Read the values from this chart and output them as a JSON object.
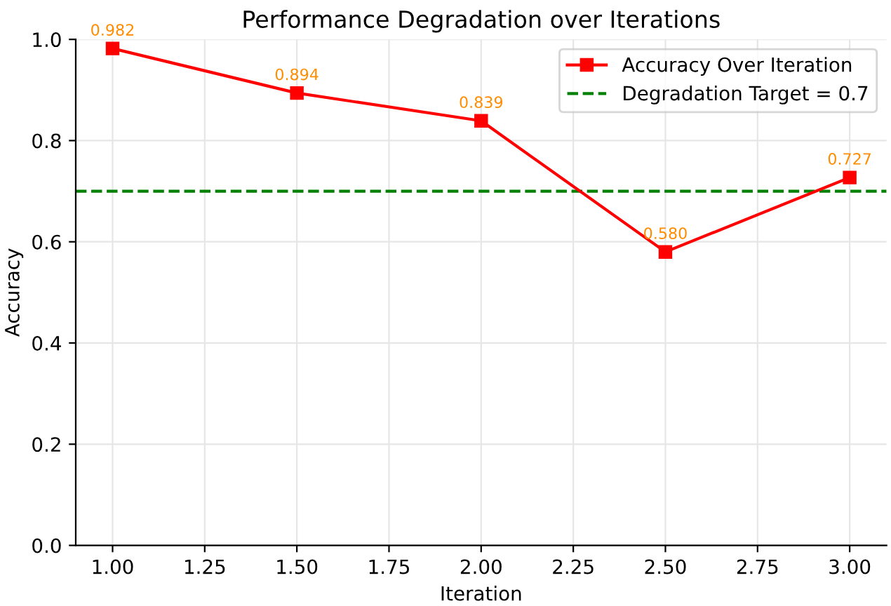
{
  "chart_data": {
    "type": "line",
    "title": "Performance Degradation over Iterations",
    "xlabel": "Iteration",
    "ylabel": "Accuracy",
    "x": [
      1.0,
      1.5,
      2.0,
      2.5,
      3.0
    ],
    "series": [
      {
        "name": "Accuracy Over Iteration",
        "color": "#ff0000",
        "values": [
          0.982,
          0.894,
          0.839,
          0.58,
          0.727
        ],
        "value_labels": [
          "0.982",
          "0.894",
          "0.839",
          "0.580",
          "0.727"
        ]
      }
    ],
    "marker": "square",
    "line_style": "solid",
    "ref_lines": [
      {
        "axis": "y",
        "value": 0.7,
        "label": "Degradation Target = 0.7",
        "color": "#008000",
        "line_style": "dashed"
      }
    ],
    "xlim": [
      0.9,
      3.1
    ],
    "xticks": [
      {
        "value": 1.0,
        "label": "1.00"
      },
      {
        "value": 1.25,
        "label": "1.25"
      },
      {
        "value": 1.5,
        "label": "1.50"
      },
      {
        "value": 1.75,
        "label": "1.75"
      },
      {
        "value": 2.0,
        "label": "2.00"
      },
      {
        "value": 2.25,
        "label": "2.25"
      },
      {
        "value": 2.5,
        "label": "2.50"
      },
      {
        "value": 2.75,
        "label": "2.75"
      },
      {
        "value": 3.0,
        "label": "3.00"
      }
    ],
    "ylim": [
      0,
      1
    ],
    "yticks": [
      {
        "value": 0,
        "label": "0.0"
      },
      {
        "value": 0.2,
        "label": "0.2"
      },
      {
        "value": 0.4,
        "label": "0.4"
      },
      {
        "value": 0.6,
        "label": "0.6"
      },
      {
        "value": 0.8,
        "label": "0.8"
      },
      {
        "value": 1.0,
        "label": "1.0"
      }
    ],
    "grid": true,
    "legend": "top right"
  }
}
